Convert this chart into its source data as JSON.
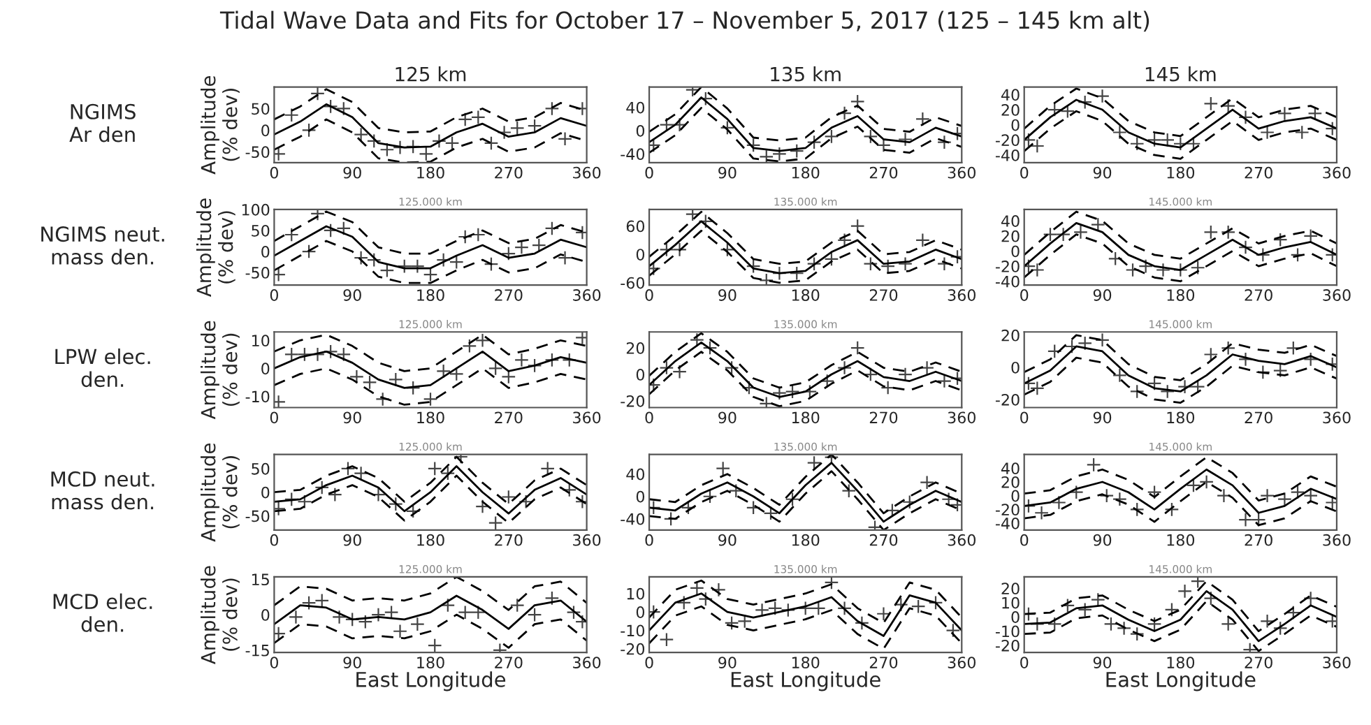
{
  "chart_data": [
    {
      "type": "line",
      "title": "125 km",
      "ylabel": "Amplitude\n(% dev)",
      "annotations": [
        "Tidal Wave Data and Fits for October 17 – November 5, 2017 (125 – 145 km alt)",
        "NGIMS\nAr den"
      ],
      "xlim": [
        0,
        360
      ],
      "xticks": [
        0,
        90,
        180,
        270,
        360
      ],
      "ylim": [
        -75,
        100
      ],
      "yticks": [
        -50,
        0,
        50
      ],
      "x": [
        0,
        30,
        60,
        90,
        120,
        150,
        180,
        210,
        240,
        270,
        300,
        330,
        360
      ],
      "series": [
        {
          "color": "#000000",
          "line_style": "solid",
          "values": [
            -10,
            20,
            60,
            30,
            -30,
            -40,
            -38,
            -5,
            15,
            -15,
            -5,
            28,
            10
          ]
        },
        {
          "color": "#000000",
          "line_style": "dashed",
          "values": [
            -45,
            -15,
            25,
            -5,
            -65,
            -75,
            -73,
            -40,
            -20,
            -50,
            -40,
            -7,
            -25
          ]
        },
        {
          "color": "#000000",
          "line_style": "dashed",
          "values": [
            25,
            55,
            95,
            65,
            5,
            -5,
            -3,
            30,
            50,
            20,
            30,
            63,
            45
          ]
        },
        {
          "type": "scatter",
          "marker": "cross",
          "color": "#444444",
          "x": [
            5,
            20,
            40,
            50,
            65,
            80,
            100,
            115,
            130,
            145,
            160,
            175,
            190,
            205,
            220,
            235,
            250,
            265,
            280,
            300,
            320,
            335,
            355
          ],
          "values": [
            -55,
            35,
            0,
            85,
            55,
            50,
            -10,
            -25,
            -45,
            -40,
            -38,
            -55,
            -25,
            -30,
            25,
            30,
            -30,
            -5,
            5,
            10,
            50,
            -20,
            50
          ]
        }
      ]
    },
    {
      "type": "line",
      "title": "135 km",
      "xlim": [
        0,
        360
      ],
      "xticks": [
        0,
        90,
        180,
        270,
        360
      ],
      "ylim": [
        -55,
        75
      ],
      "yticks": [
        -40,
        0,
        40
      ],
      "x": [
        0,
        30,
        60,
        90,
        120,
        150,
        180,
        210,
        240,
        270,
        300,
        330,
        360
      ],
      "series": [
        {
          "color": "#000000",
          "line_style": "solid",
          "values": [
            -20,
            10,
            57,
            20,
            -30,
            -35,
            -30,
            5,
            25,
            -15,
            -20,
            5,
            -10
          ]
        },
        {
          "color": "#000000",
          "line_style": "dashed",
          "values": [
            -38,
            -8,
            39,
            2,
            -48,
            -53,
            -48,
            -13,
            7,
            -33,
            -38,
            -13,
            -28
          ]
        },
        {
          "color": "#000000",
          "line_style": "dashed",
          "values": [
            -2,
            28,
            75,
            38,
            -12,
            -17,
            -12,
            23,
            43,
            3,
            -2,
            23,
            8
          ]
        },
        {
          "type": "scatter",
          "marker": "cross",
          "color": "#444444",
          "x": [
            5,
            20,
            35,
            50,
            65,
            90,
            120,
            135,
            150,
            170,
            190,
            210,
            225,
            240,
            255,
            270,
            295,
            315,
            340,
            355
          ],
          "values": [
            -25,
            10,
            10,
            70,
            55,
            5,
            -25,
            -45,
            -40,
            -35,
            -20,
            -10,
            30,
            50,
            -10,
            -25,
            -15,
            20,
            -20,
            -5
          ]
        }
      ]
    },
    {
      "type": "line",
      "title": "145 km",
      "xlim": [
        0,
        360
      ],
      "xticks": [
        0,
        90,
        180,
        270,
        360
      ],
      "ylim": [
        -50,
        50
      ],
      "yticks": [
        -40,
        -20,
        0,
        20,
        40
      ],
      "x": [
        0,
        30,
        60,
        90,
        120,
        150,
        180,
        210,
        240,
        270,
        300,
        330,
        360
      ],
      "series": [
        {
          "color": "#000000",
          "line_style": "solid",
          "values": [
            -20,
            10,
            33,
            20,
            -10,
            -25,
            -30,
            -5,
            20,
            -5,
            5,
            10,
            -5
          ]
        },
        {
          "color": "#000000",
          "line_style": "dashed",
          "values": [
            -35,
            -5,
            18,
            5,
            -25,
            -40,
            -45,
            -20,
            5,
            -20,
            -10,
            -5,
            -20
          ]
        },
        {
          "color": "#000000",
          "line_style": "dashed",
          "values": [
            -5,
            25,
            48,
            35,
            5,
            -10,
            -15,
            10,
            35,
            10,
            20,
            25,
            10
          ]
        },
        {
          "type": "scatter",
          "marker": "cross",
          "color": "#444444",
          "x": [
            5,
            15,
            35,
            50,
            70,
            90,
            110,
            130,
            150,
            165,
            180,
            195,
            215,
            235,
            255,
            280,
            300,
            320,
            335,
            355
          ],
          "values": [
            -20,
            -28,
            20,
            18,
            30,
            38,
            -10,
            -25,
            -20,
            -20,
            -25,
            -25,
            28,
            25,
            10,
            -10,
            15,
            -10,
            15,
            -5
          ]
        }
      ]
    },
    {
      "type": "line",
      "subtitle": "125.000 km",
      "ylabel": "Amplitude\n(% dev)",
      "annotations": [
        "NGIMS neut.\nmass den."
      ],
      "xlim": [
        0,
        360
      ],
      "xticks": [
        0,
        90,
        180,
        270,
        360
      ],
      "ylim": [
        -80,
        100
      ],
      "yticks": [
        -50,
        0,
        50,
        100
      ],
      "x": [
        0,
        30,
        60,
        90,
        120,
        150,
        180,
        210,
        240,
        270,
        300,
        330,
        360
      ],
      "series": [
        {
          "color": "#000000",
          "line_style": "solid",
          "values": [
            -10,
            25,
            60,
            35,
            -25,
            -40,
            -40,
            -10,
            15,
            -15,
            -5,
            28,
            10
          ]
        },
        {
          "color": "#000000",
          "line_style": "dashed",
          "values": [
            -45,
            -10,
            25,
            0,
            -60,
            -75,
            -75,
            -45,
            -20,
            -50,
            -40,
            -7,
            -25
          ]
        },
        {
          "color": "#000000",
          "line_style": "dashed",
          "values": [
            25,
            60,
            95,
            70,
            10,
            -5,
            -5,
            25,
            50,
            20,
            30,
            63,
            45
          ]
        },
        {
          "type": "scatter",
          "marker": "cross",
          "color": "#444444",
          "x": [
            5,
            20,
            40,
            50,
            65,
            80,
            100,
            115,
            130,
            150,
            165,
            180,
            195,
            210,
            220,
            235,
            250,
            270,
            285,
            305,
            320,
            335,
            355
          ],
          "values": [
            -55,
            40,
            0,
            90,
            50,
            55,
            -15,
            -20,
            -45,
            -35,
            -35,
            -55,
            -20,
            -25,
            35,
            40,
            -30,
            -5,
            10,
            15,
            55,
            -15,
            45
          ]
        }
      ]
    },
    {
      "type": "line",
      "subtitle": "135.000 km",
      "xlim": [
        0,
        360
      ],
      "xticks": [
        0,
        90,
        180,
        270,
        360
      ],
      "ylim": [
        -65,
        95
      ],
      "yticks": [
        -60,
        0,
        60
      ],
      "x": [
        0,
        30,
        60,
        90,
        120,
        150,
        180,
        210,
        240,
        270,
        300,
        330,
        360
      ],
      "series": [
        {
          "color": "#000000",
          "line_style": "solid",
          "values": [
            -25,
            20,
            70,
            25,
            -30,
            -40,
            -35,
            5,
            30,
            -20,
            -15,
            10,
            -10
          ]
        },
        {
          "color": "#000000",
          "line_style": "dashed",
          "values": [
            -45,
            0,
            50,
            5,
            -50,
            -60,
            -55,
            -15,
            10,
            -40,
            -35,
            -10,
            -30
          ]
        },
        {
          "color": "#000000",
          "line_style": "dashed",
          "values": [
            -5,
            40,
            90,
            45,
            -10,
            -20,
            -15,
            25,
            50,
            0,
            5,
            30,
            10
          ]
        },
        {
          "type": "scatter",
          "marker": "cross",
          "color": "#444444",
          "x": [
            5,
            20,
            35,
            50,
            65,
            90,
            120,
            135,
            150,
            170,
            190,
            210,
            225,
            240,
            255,
            275,
            295,
            315,
            340,
            355
          ],
          "values": [
            -30,
            10,
            10,
            85,
            70,
            10,
            -25,
            -55,
            -40,
            -40,
            -20,
            -10,
            30,
            60,
            -20,
            -25,
            -20,
            30,
            -20,
            -5
          ]
        }
      ]
    },
    {
      "type": "line",
      "subtitle": "145.000 km",
      "xlim": [
        0,
        360
      ],
      "xticks": [
        0,
        90,
        180,
        270,
        360
      ],
      "ylim": [
        -45,
        55
      ],
      "yticks": [
        -40,
        -20,
        0,
        20,
        40
      ],
      "x": [
        0,
        30,
        60,
        90,
        120,
        150,
        180,
        210,
        240,
        270,
        300,
        330,
        360
      ],
      "series": [
        {
          "color": "#000000",
          "line_style": "solid",
          "values": [
            -20,
            10,
            37,
            25,
            -5,
            -20,
            -25,
            -5,
            15,
            -5,
            5,
            12,
            -5
          ]
        },
        {
          "color": "#000000",
          "line_style": "dashed",
          "values": [
            -35,
            -5,
            22,
            10,
            -20,
            -35,
            -40,
            -20,
            0,
            -20,
            -10,
            -3,
            -20
          ]
        },
        {
          "color": "#000000",
          "line_style": "dashed",
          "values": [
            -5,
            25,
            52,
            40,
            10,
            -5,
            -10,
            10,
            30,
            10,
            20,
            27,
            10
          ]
        },
        {
          "type": "scatter",
          "marker": "cross",
          "color": "#444444",
          "x": [
            5,
            15,
            30,
            45,
            65,
            85,
            105,
            125,
            140,
            160,
            180,
            200,
            215,
            235,
            255,
            275,
            295,
            315,
            330,
            355
          ],
          "values": [
            -20,
            -25,
            22,
            22,
            25,
            35,
            -10,
            -25,
            -20,
            -25,
            -25,
            -22,
            25,
            25,
            5,
            -5,
            15,
            -5,
            20,
            -5
          ]
        }
      ]
    },
    {
      "type": "line",
      "subtitle": "125.000 km",
      "ylabel": "Amplitude\n(% dev)",
      "annotations": [
        "LPW elec.\nden."
      ],
      "xlim": [
        0,
        360
      ],
      "xticks": [
        0,
        90,
        180,
        270,
        360
      ],
      "ylim": [
        -14,
        13
      ],
      "yticks": [
        -10,
        0,
        10
      ],
      "x": [
        0,
        30,
        60,
        90,
        120,
        150,
        180,
        210,
        240,
        270,
        300,
        330,
        360
      ],
      "series": [
        {
          "color": "#000000",
          "line_style": "solid",
          "values": [
            0,
            4,
            6,
            2,
            -4,
            -7,
            -6,
            0,
            6,
            -1,
            1,
            4,
            2
          ]
        },
        {
          "color": "#000000",
          "line_style": "dashed",
          "values": [
            -6,
            -2,
            0,
            -4,
            -10,
            -13,
            -12,
            -6,
            0,
            -7,
            -5,
            -2,
            -4
          ]
        },
        {
          "color": "#000000",
          "line_style": "dashed",
          "values": [
            6,
            10,
            12,
            8,
            2,
            -1,
            0,
            6,
            12,
            5,
            7,
            10,
            8
          ]
        },
        {
          "type": "scatter",
          "marker": "cross",
          "color": "#444444",
          "x": [
            5,
            20,
            35,
            50,
            65,
            80,
            95,
            110,
            125,
            140,
            160,
            180,
            195,
            210,
            225,
            240,
            255,
            270,
            285,
            300,
            320,
            340,
            355
          ],
          "values": [
            -12,
            5,
            5,
            5,
            6,
            5,
            -3,
            -5,
            -11,
            -4,
            -7,
            -11,
            -1,
            -2,
            8,
            10,
            0,
            -3,
            3,
            1,
            3,
            3,
            11
          ]
        }
      ]
    },
    {
      "type": "line",
      "subtitle": "135.000 km",
      "xlim": [
        0,
        360
      ],
      "xticks": [
        0,
        90,
        180,
        270,
        360
      ],
      "ylim": [
        -25,
        32
      ],
      "yticks": [
        -20,
        0,
        20
      ],
      "x": [
        0,
        30,
        60,
        90,
        120,
        150,
        180,
        210,
        240,
        270,
        300,
        330,
        360
      ],
      "series": [
        {
          "color": "#000000",
          "line_style": "solid",
          "values": [
            -8,
            10,
            24,
            10,
            -10,
            -17,
            -13,
            0,
            10,
            -2,
            -5,
            2,
            -5
          ]
        },
        {
          "color": "#000000",
          "line_style": "dashed",
          "values": [
            -15,
            3,
            17,
            3,
            -17,
            -24,
            -20,
            -7,
            3,
            -9,
            -12,
            -5,
            -12
          ]
        },
        {
          "color": "#000000",
          "line_style": "dashed",
          "values": [
            -1,
            17,
            31,
            17,
            -3,
            -10,
            -6,
            7,
            17,
            5,
            2,
            9,
            2
          ]
        },
        {
          "type": "scatter",
          "marker": "cross",
          "color": "#444444",
          "x": [
            5,
            20,
            35,
            55,
            70,
            95,
            115,
            135,
            150,
            165,
            185,
            205,
            225,
            240,
            255,
            275,
            295,
            320,
            340,
            355
          ],
          "values": [
            -8,
            5,
            2,
            26,
            20,
            5,
            -10,
            -22,
            -14,
            -13,
            -13,
            -5,
            5,
            20,
            0,
            -10,
            0,
            5,
            -5,
            -3
          ]
        }
      ]
    },
    {
      "type": "line",
      "subtitle": "145.000 km",
      "xlim": [
        0,
        360
      ],
      "xticks": [
        0,
        90,
        180,
        270,
        360
      ],
      "ylim": [
        -25,
        22
      ],
      "yticks": [
        -20,
        0,
        20
      ],
      "x": [
        0,
        30,
        60,
        90,
        120,
        150,
        180,
        210,
        240,
        270,
        300,
        330,
        360
      ],
      "series": [
        {
          "color": "#000000",
          "line_style": "solid",
          "values": [
            -10,
            -2,
            13,
            10,
            -5,
            -13,
            -15,
            -5,
            8,
            4,
            2,
            7,
            0
          ]
        },
        {
          "color": "#000000",
          "line_style": "dashed",
          "values": [
            -17,
            -9,
            6,
            3,
            -12,
            -20,
            -22,
            -12,
            1,
            -3,
            -5,
            0,
            -7
          ]
        },
        {
          "color": "#000000",
          "line_style": "dashed",
          "values": [
            -3,
            5,
            20,
            17,
            2,
            -6,
            -8,
            2,
            15,
            11,
            9,
            14,
            7
          ]
        },
        {
          "type": "scatter",
          "marker": "cross",
          "color": "#444444",
          "x": [
            5,
            15,
            35,
            55,
            70,
            90,
            110,
            130,
            150,
            165,
            185,
            200,
            215,
            235,
            255,
            275,
            295,
            310,
            330,
            355
          ],
          "values": [
            -10,
            -13,
            10,
            13,
            15,
            17,
            -5,
            -15,
            -10,
            -15,
            -12,
            -12,
            8,
            12,
            5,
            -3,
            -2,
            12,
            5,
            2
          ]
        }
      ]
    },
    {
      "type": "line",
      "subtitle": "125.000 km",
      "ylabel": "Amplitude\n(% dev)",
      "annotations": [
        "MCD neut.\nmass den."
      ],
      "xlim": [
        0,
        360
      ],
      "xticks": [
        0,
        90,
        180,
        270,
        360
      ],
      "ylim": [
        -80,
        80
      ],
      "yticks": [
        -50,
        0,
        50
      ],
      "x": [
        0,
        30,
        60,
        90,
        120,
        150,
        180,
        210,
        240,
        270,
        300,
        330,
        360
      ],
      "series": [
        {
          "color": "#000000",
          "line_style": "solid",
          "values": [
            -20,
            -15,
            15,
            35,
            10,
            -40,
            0,
            55,
            0,
            -45,
            5,
            30,
            -5
          ]
        },
        {
          "color": "#000000",
          "line_style": "dashed",
          "values": [
            -40,
            -35,
            -5,
            15,
            -10,
            -60,
            -20,
            35,
            -20,
            -65,
            -15,
            10,
            -25
          ]
        },
        {
          "color": "#000000",
          "line_style": "dashed",
          "values": [
            0,
            5,
            35,
            55,
            30,
            -20,
            20,
            75,
            20,
            -25,
            25,
            50,
            15
          ]
        },
        {
          "type": "scatter",
          "marker": "cross",
          "color": "#444444",
          "x": [
            5,
            20,
            35,
            55,
            70,
            85,
            100,
            120,
            140,
            160,
            185,
            200,
            215,
            240,
            255,
            270,
            290,
            315,
            340,
            355
          ],
          "values": [
            -35,
            -15,
            -20,
            10,
            -5,
            50,
            40,
            -5,
            -25,
            -40,
            50,
            40,
            75,
            -30,
            -65,
            -10,
            -20,
            50,
            5,
            -20
          ]
        }
      ]
    },
    {
      "type": "line",
      "subtitle": "135.000 km",
      "xlim": [
        0,
        360
      ],
      "xticks": [
        0,
        90,
        180,
        270,
        360
      ],
      "ylim": [
        -60,
        75
      ],
      "yticks": [
        -40,
        0,
        40
      ],
      "x": [
        0,
        30,
        60,
        90,
        120,
        150,
        180,
        210,
        240,
        270,
        300,
        330,
        360
      ],
      "series": [
        {
          "color": "#000000",
          "line_style": "solid",
          "values": [
            -20,
            -25,
            5,
            25,
            0,
            -30,
            20,
            60,
            10,
            -45,
            -15,
            10,
            -10
          ]
        },
        {
          "color": "#000000",
          "line_style": "dashed",
          "values": [
            -35,
            -40,
            -10,
            10,
            -15,
            -45,
            5,
            45,
            -5,
            -60,
            -30,
            -5,
            -25
          ]
        },
        {
          "color": "#000000",
          "line_style": "dashed",
          "values": [
            -5,
            -10,
            20,
            40,
            15,
            -15,
            35,
            75,
            25,
            -30,
            0,
            25,
            5
          ]
        },
        {
          "type": "scatter",
          "marker": "cross",
          "color": "#444444",
          "x": [
            5,
            25,
            45,
            70,
            85,
            100,
            120,
            140,
            165,
            190,
            210,
            230,
            260,
            280,
            300,
            320,
            345,
            355
          ],
          "values": [
            -20,
            -40,
            -20,
            0,
            50,
            10,
            -20,
            -30,
            -5,
            60,
            70,
            10,
            -55,
            -25,
            -10,
            25,
            -5,
            -15
          ]
        }
      ]
    },
    {
      "type": "line",
      "subtitle": "145.000 km",
      "xlim": [
        0,
        360
      ],
      "xticks": [
        0,
        90,
        180,
        270,
        360
      ],
      "ylim": [
        -50,
        60
      ],
      "yticks": [
        -40,
        -20,
        0,
        20,
        40
      ],
      "x": [
        0,
        30,
        60,
        90,
        120,
        150,
        180,
        210,
        240,
        270,
        300,
        330,
        360
      ],
      "series": [
        {
          "color": "#000000",
          "line_style": "solid",
          "values": [
            -15,
            -10,
            10,
            20,
            5,
            -20,
            10,
            38,
            15,
            -25,
            -15,
            10,
            -5
          ]
        },
        {
          "color": "#000000",
          "line_style": "dashed",
          "values": [
            -33,
            -28,
            -8,
            2,
            -13,
            -38,
            -8,
            20,
            -3,
            -43,
            -33,
            -8,
            -23
          ]
        },
        {
          "color": "#000000",
          "line_style": "dashed",
          "values": [
            3,
            8,
            28,
            38,
            23,
            -2,
            28,
            56,
            33,
            -7,
            3,
            28,
            13
          ]
        },
        {
          "type": "scatter",
          "marker": "cross",
          "color": "#444444",
          "x": [
            5,
            20,
            40,
            60,
            80,
            95,
            110,
            130,
            150,
            170,
            195,
            210,
            230,
            255,
            270,
            280,
            300,
            315,
            330,
            355
          ],
          "values": [
            -15,
            -25,
            -10,
            5,
            45,
            0,
            -5,
            -20,
            5,
            -20,
            15,
            20,
            0,
            -35,
            -35,
            0,
            -5,
            5,
            0,
            -10
          ]
        }
      ]
    },
    {
      "type": "line",
      "subtitle": "125.000 km",
      "ylabel": "Amplitude\n(% dev)",
      "xlabel": "East Longitude",
      "annotations": [
        "MCD elec.\nden."
      ],
      "xlim": [
        0,
        360
      ],
      "xticks": [
        0,
        90,
        180,
        270,
        360
      ],
      "ylim": [
        -16,
        16
      ],
      "yticks": [
        -15,
        0,
        15
      ],
      "x": [
        0,
        30,
        60,
        90,
        120,
        150,
        180,
        210,
        240,
        270,
        300,
        330,
        360
      ],
      "series": [
        {
          "color": "#000000",
          "line_style": "solid",
          "values": [
            -4,
            4,
            3,
            -2,
            -1,
            -2,
            1,
            8,
            2,
            -6,
            4,
            6,
            -3
          ]
        },
        {
          "color": "#000000",
          "line_style": "dashed",
          "values": [
            -12,
            -4,
            -5,
            -10,
            -9,
            -10,
            -7,
            0,
            -6,
            -14,
            -4,
            -2,
            -11
          ]
        },
        {
          "color": "#000000",
          "line_style": "dashed",
          "values": [
            4,
            12,
            11,
            6,
            7,
            6,
            9,
            16,
            10,
            2,
            12,
            14,
            5
          ]
        },
        {
          "type": "scatter",
          "marker": "cross",
          "color": "#444444",
          "x": [
            5,
            25,
            40,
            55,
            75,
            90,
            105,
            120,
            135,
            145,
            165,
            185,
            200,
            220,
            235,
            260,
            280,
            300,
            320,
            345,
            355
          ],
          "values": [
            -8,
            -1,
            5,
            6,
            -1,
            -2,
            -3,
            0,
            1,
            -7,
            -4,
            -13,
            4,
            1,
            1,
            -15,
            4,
            0,
            7,
            1,
            -3
          ]
        }
      ]
    },
    {
      "type": "line",
      "subtitle": "135.000 km",
      "xlabel": "East Longitude",
      "xlim": [
        0,
        360
      ],
      "xticks": [
        0,
        90,
        180,
        270,
        360
      ],
      "ylim": [
        -22,
        19
      ],
      "yticks": [
        -20,
        -10,
        0,
        10
      ],
      "x": [
        0,
        30,
        60,
        90,
        120,
        150,
        180,
        210,
        240,
        270,
        300,
        330,
        360
      ],
      "series": [
        {
          "color": "#000000",
          "line_style": "solid",
          "values": [
            -10,
            5,
            10,
            0,
            -3,
            0,
            3,
            8,
            -5,
            -13,
            9,
            5,
            -10
          ]
        },
        {
          "color": "#000000",
          "line_style": "dashed",
          "values": [
            -17,
            -2,
            3,
            -7,
            -10,
            -7,
            -4,
            1,
            -12,
            -20,
            2,
            -2,
            -17
          ]
        },
        {
          "color": "#000000",
          "line_style": "dashed",
          "values": [
            -3,
            12,
            17,
            7,
            4,
            7,
            10,
            15,
            2,
            -6,
            16,
            12,
            -3
          ]
        },
        {
          "type": "scatter",
          "marker": "cross",
          "color": "#444444",
          "x": [
            5,
            20,
            40,
            55,
            65,
            80,
            95,
            110,
            130,
            145,
            160,
            180,
            195,
            210,
            225,
            245,
            270,
            290,
            310,
            330,
            350
          ],
          "values": [
            0,
            -15,
            5,
            13,
            7,
            12,
            -6,
            -5,
            1,
            2,
            1,
            2,
            2,
            16,
            2,
            -6,
            -1,
            4,
            3,
            5,
            -10
          ]
        }
      ]
    },
    {
      "type": "line",
      "subtitle": "145.000 km",
      "xlabel": "East Longitude",
      "xlim": [
        0,
        360
      ],
      "xticks": [
        0,
        90,
        180,
        270,
        360
      ],
      "ylim": [
        -25,
        28
      ],
      "yticks": [
        -20,
        -10,
        0,
        10,
        20
      ],
      "x": [
        0,
        30,
        60,
        90,
        120,
        150,
        180,
        210,
        240,
        270,
        300,
        330,
        360
      ],
      "series": [
        {
          "color": "#000000",
          "line_style": "solid",
          "values": [
            -5,
            -4,
            6,
            8,
            -2,
            -10,
            -2,
            18,
            5,
            -17,
            -5,
            8,
            0
          ]
        },
        {
          "color": "#000000",
          "line_style": "dashed",
          "values": [
            -12,
            -11,
            -1,
            1,
            -9,
            -17,
            -9,
            11,
            -2,
            -24,
            -12,
            1,
            -7
          ]
        },
        {
          "color": "#000000",
          "line_style": "dashed",
          "values": [
            2,
            3,
            13,
            15,
            5,
            -3,
            5,
            25,
            12,
            -10,
            2,
            15,
            7
          ]
        },
        {
          "type": "scatter",
          "marker": "cross",
          "color": "#444444",
          "x": [
            5,
            15,
            35,
            50,
            70,
            85,
            100,
            115,
            130,
            150,
            170,
            185,
            200,
            215,
            235,
            260,
            280,
            295,
            310,
            330,
            355
          ],
          "values": [
            2,
            -5,
            -5,
            8,
            5,
            12,
            -5,
            -8,
            -12,
            -5,
            5,
            18,
            25,
            13,
            -5,
            -23,
            -3,
            -8,
            3,
            13,
            -3
          ]
        }
      ]
    }
  ]
}
